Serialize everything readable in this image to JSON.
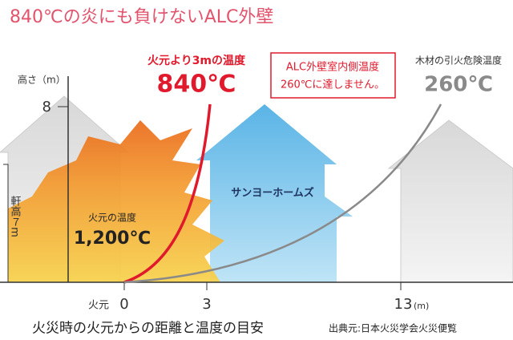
{
  "title": "840℃の炎にも負けないALC外壁",
  "y_axis": {
    "label": "高さ（m）",
    "tick": "8",
    "eave_label": "軒高７m"
  },
  "x_axis": {
    "origin_label": "火元",
    "ticks": [
      "0",
      "3",
      "13"
    ],
    "unit": "(m)"
  },
  "callouts": {
    "near_label": "火元より3mの温度",
    "near_value": "840℃",
    "alc_lines": [
      "ALC外壁室内側温度",
      "260℃に達しません。"
    ],
    "wood_label": "木材の引火危険温度",
    "wood_value": "260℃",
    "fire_label": "火元の温度",
    "fire_value": "1,200℃"
  },
  "house_label": "サンヨーホームズ",
  "caption": "火災時の火元からの距離と温度の目安",
  "source": "出典元:日本火災学会火災便覧"
}
